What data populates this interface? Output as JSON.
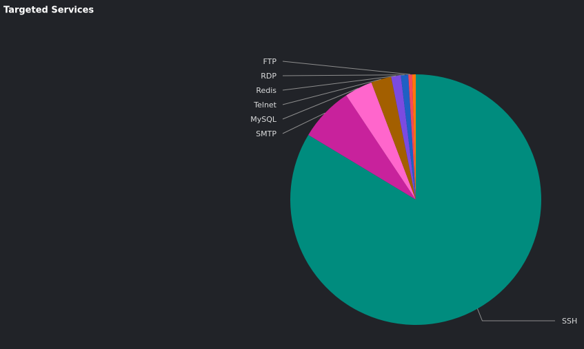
{
  "chart_data": {
    "type": "pie",
    "title": "Targeted Services",
    "categories": [
      "SSH",
      "SMTP",
      "MySQL",
      "Telnet",
      "Redis",
      "RDP",
      "FTP",
      null
    ],
    "values": [
      83.6,
      7.0,
      3.6,
      2.6,
      1.25,
      0.95,
      0.5,
      0.45
    ],
    "colors": [
      "#008c7e",
      "#c8229c",
      "#ff66cc",
      "#a35f00",
      "#7b4be0",
      "#1f60c4",
      "#f2495c",
      "#ff780a"
    ]
  }
}
